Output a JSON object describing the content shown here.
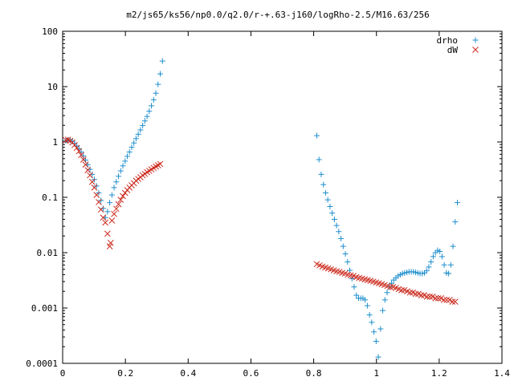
{
  "chart_data": {
    "type": "scatter",
    "title": "m2/js65/ks56/np0.0/q2.0/r-+.63-j160/logRho-2.5/M16.63/256",
    "xlabel": "",
    "ylabel": "",
    "xlim": [
      0,
      1.4
    ],
    "ylim": [
      0.0001,
      100
    ],
    "yscale": "log",
    "grid": false,
    "legend_position": "top-right",
    "x_ticks": [
      {
        "value": 0,
        "label": "0"
      },
      {
        "value": 0.2,
        "label": "0.2"
      },
      {
        "value": 0.4,
        "label": "0.4"
      },
      {
        "value": 0.6,
        "label": "0.6"
      },
      {
        "value": 0.8,
        "label": "0.8"
      },
      {
        "value": 1.0,
        "label": "1"
      },
      {
        "value": 1.2,
        "label": "1.2"
      },
      {
        "value": 1.4,
        "label": "1.4"
      }
    ],
    "y_ticks": [
      {
        "value": 100,
        "label": "100"
      },
      {
        "value": 10,
        "label": "10"
      },
      {
        "value": 1,
        "label": "1"
      },
      {
        "value": 0.1,
        "label": "0.1"
      },
      {
        "value": 0.01,
        "label": "0.01"
      },
      {
        "value": 0.001,
        "label": "0.001"
      },
      {
        "value": 0.0001,
        "label": "0.0001"
      }
    ],
    "series": [
      {
        "name": "drho",
        "marker": "plus",
        "color": "#1f8fce",
        "points": [
          [
            0.01,
            1.05
          ],
          [
            0.017,
            1.1
          ],
          [
            0.024,
            1.08
          ],
          [
            0.031,
            1.02
          ],
          [
            0.038,
            0.94
          ],
          [
            0.045,
            0.85
          ],
          [
            0.052,
            0.76
          ],
          [
            0.059,
            0.66
          ],
          [
            0.066,
            0.56
          ],
          [
            0.073,
            0.47
          ],
          [
            0.08,
            0.39
          ],
          [
            0.087,
            0.32
          ],
          [
            0.094,
            0.26
          ],
          [
            0.101,
            0.21
          ],
          [
            0.108,
            0.16
          ],
          [
            0.115,
            0.12
          ],
          [
            0.122,
            0.088
          ],
          [
            0.129,
            0.063
          ],
          [
            0.136,
            0.043
          ],
          [
            0.143,
            0.055
          ],
          [
            0.15,
            0.08
          ],
          [
            0.157,
            0.11
          ],
          [
            0.164,
            0.15
          ],
          [
            0.171,
            0.19
          ],
          [
            0.178,
            0.24
          ],
          [
            0.185,
            0.3
          ],
          [
            0.192,
            0.37
          ],
          [
            0.199,
            0.45
          ],
          [
            0.206,
            0.55
          ],
          [
            0.213,
            0.66
          ],
          [
            0.22,
            0.8
          ],
          [
            0.227,
            0.96
          ],
          [
            0.234,
            1.15
          ],
          [
            0.241,
            1.38
          ],
          [
            0.248,
            1.65
          ],
          [
            0.255,
            1.98
          ],
          [
            0.262,
            2.4
          ],
          [
            0.269,
            2.9
          ],
          [
            0.276,
            3.6
          ],
          [
            0.283,
            4.5
          ],
          [
            0.29,
            5.8
          ],
          [
            0.297,
            7.6
          ],
          [
            0.304,
            11
          ],
          [
            0.311,
            17
          ],
          [
            0.318,
            29
          ],
          [
            0.81,
            1.3
          ],
          [
            0.817,
            0.48
          ],
          [
            0.824,
            0.26
          ],
          [
            0.831,
            0.17
          ],
          [
            0.838,
            0.12
          ],
          [
            0.845,
            0.09
          ],
          [
            0.852,
            0.068
          ],
          [
            0.859,
            0.052
          ],
          [
            0.866,
            0.04
          ],
          [
            0.873,
            0.031
          ],
          [
            0.88,
            0.024
          ],
          [
            0.887,
            0.018
          ],
          [
            0.894,
            0.013
          ],
          [
            0.901,
            0.0095
          ],
          [
            0.908,
            0.0068
          ],
          [
            0.915,
            0.0048
          ],
          [
            0.922,
            0.0034
          ],
          [
            0.929,
            0.0024
          ],
          [
            0.936,
            0.0017
          ],
          [
            0.943,
            0.0015
          ],
          [
            0.95,
            0.0015
          ],
          [
            0.957,
            0.0015
          ],
          [
            0.964,
            0.0014
          ],
          [
            0.971,
            0.0011
          ],
          [
            0.978,
            0.00075
          ],
          [
            0.985,
            0.00055
          ],
          [
            0.992,
            0.00037
          ],
          [
            0.999,
            0.00025
          ],
          [
            1.006,
            0.00013
          ],
          [
            1.013,
            0.00042
          ],
          [
            1.02,
            0.0009
          ],
          [
            1.027,
            0.0014
          ],
          [
            1.034,
            0.0019
          ],
          [
            1.041,
            0.0024
          ],
          [
            1.048,
            0.0028
          ],
          [
            1.055,
            0.0032
          ],
          [
            1.062,
            0.0035
          ],
          [
            1.069,
            0.0038
          ],
          [
            1.076,
            0.004
          ],
          [
            1.083,
            0.0042
          ],
          [
            1.09,
            0.0043
          ],
          [
            1.097,
            0.0044
          ],
          [
            1.104,
            0.0045
          ],
          [
            1.111,
            0.0045
          ],
          [
            1.118,
            0.0045
          ],
          [
            1.125,
            0.0044
          ],
          [
            1.132,
            0.0043
          ],
          [
            1.139,
            0.0042
          ],
          [
            1.146,
            0.0042
          ],
          [
            1.153,
            0.0043
          ],
          [
            1.16,
            0.0047
          ],
          [
            1.167,
            0.0055
          ],
          [
            1.174,
            0.0068
          ],
          [
            1.181,
            0.0085
          ],
          [
            1.188,
            0.01
          ],
          [
            1.195,
            0.011
          ],
          [
            1.202,
            0.0105
          ],
          [
            1.209,
            0.0085
          ],
          [
            1.216,
            0.006
          ],
          [
            1.223,
            0.0043
          ],
          [
            1.23,
            0.0042
          ],
          [
            1.237,
            0.006
          ],
          [
            1.244,
            0.013
          ],
          [
            1.251,
            0.036
          ],
          [
            1.258,
            0.08
          ]
        ]
      },
      {
        "name": "dW",
        "marker": "cross",
        "color": "#cc2b1e",
        "points": [
          [
            0.01,
            1.08
          ],
          [
            0.017,
            1.1
          ],
          [
            0.024,
            1.05
          ],
          [
            0.031,
            0.98
          ],
          [
            0.038,
            0.88
          ],
          [
            0.045,
            0.78
          ],
          [
            0.052,
            0.68
          ],
          [
            0.059,
            0.58
          ],
          [
            0.066,
            0.48
          ],
          [
            0.073,
            0.39
          ],
          [
            0.08,
            0.31
          ],
          [
            0.087,
            0.25
          ],
          [
            0.094,
            0.19
          ],
          [
            0.101,
            0.15
          ],
          [
            0.108,
            0.11
          ],
          [
            0.115,
            0.082
          ],
          [
            0.122,
            0.06
          ],
          [
            0.129,
            0.043
          ],
          [
            0.136,
            0.035
          ],
          [
            0.143,
            0.022
          ],
          [
            0.15,
            0.013
          ],
          [
            0.153,
            0.015
          ],
          [
            0.157,
            0.038
          ],
          [
            0.164,
            0.05
          ],
          [
            0.171,
            0.062
          ],
          [
            0.178,
            0.075
          ],
          [
            0.185,
            0.09
          ],
          [
            0.192,
            0.105
          ],
          [
            0.199,
            0.12
          ],
          [
            0.206,
            0.135
          ],
          [
            0.213,
            0.15
          ],
          [
            0.22,
            0.165
          ],
          [
            0.227,
            0.18
          ],
          [
            0.234,
            0.2
          ],
          [
            0.241,
            0.215
          ],
          [
            0.248,
            0.23
          ],
          [
            0.255,
            0.25
          ],
          [
            0.262,
            0.265
          ],
          [
            0.269,
            0.285
          ],
          [
            0.276,
            0.3
          ],
          [
            0.283,
            0.32
          ],
          [
            0.29,
            0.34
          ],
          [
            0.297,
            0.36
          ],
          [
            0.304,
            0.38
          ],
          [
            0.311,
            0.4
          ],
          [
            0.81,
            0.0062
          ],
          [
            0.819,
            0.0059
          ],
          [
            0.828,
            0.0056
          ],
          [
            0.837,
            0.0054
          ],
          [
            0.846,
            0.0052
          ],
          [
            0.855,
            0.005
          ],
          [
            0.864,
            0.0048
          ],
          [
            0.873,
            0.0046
          ],
          [
            0.882,
            0.0045
          ],
          [
            0.891,
            0.0043
          ],
          [
            0.9,
            0.0042
          ],
          [
            0.909,
            0.004
          ],
          [
            0.918,
            0.0039
          ],
          [
            0.927,
            0.0038
          ],
          [
            0.936,
            0.0036
          ],
          [
            0.945,
            0.0035
          ],
          [
            0.954,
            0.0034
          ],
          [
            0.963,
            0.0033
          ],
          [
            0.972,
            0.0032
          ],
          [
            0.981,
            0.0031
          ],
          [
            0.99,
            0.003
          ],
          [
            0.999,
            0.0029
          ],
          [
            1.008,
            0.0028
          ],
          [
            1.017,
            0.0027
          ],
          [
            1.026,
            0.0026
          ],
          [
            1.035,
            0.0025
          ],
          [
            1.044,
            0.0024
          ],
          [
            1.053,
            0.0024
          ],
          [
            1.062,
            0.0023
          ],
          [
            1.071,
            0.0022
          ],
          [
            1.08,
            0.0021
          ],
          [
            1.089,
            0.0021
          ],
          [
            1.098,
            0.002
          ],
          [
            1.107,
            0.0019
          ],
          [
            1.116,
            0.0019
          ],
          [
            1.125,
            0.0018
          ],
          [
            1.134,
            0.0018
          ],
          [
            1.143,
            0.0017
          ],
          [
            1.152,
            0.0017
          ],
          [
            1.161,
            0.0016
          ],
          [
            1.17,
            0.0016
          ],
          [
            1.179,
            0.0016
          ],
          [
            1.188,
            0.0015
          ],
          [
            1.197,
            0.0015
          ],
          [
            1.206,
            0.0015
          ],
          [
            1.215,
            0.0014
          ],
          [
            1.224,
            0.0014
          ],
          [
            1.233,
            0.0014
          ],
          [
            1.242,
            0.0013
          ],
          [
            1.251,
            0.0013
          ]
        ]
      }
    ]
  }
}
